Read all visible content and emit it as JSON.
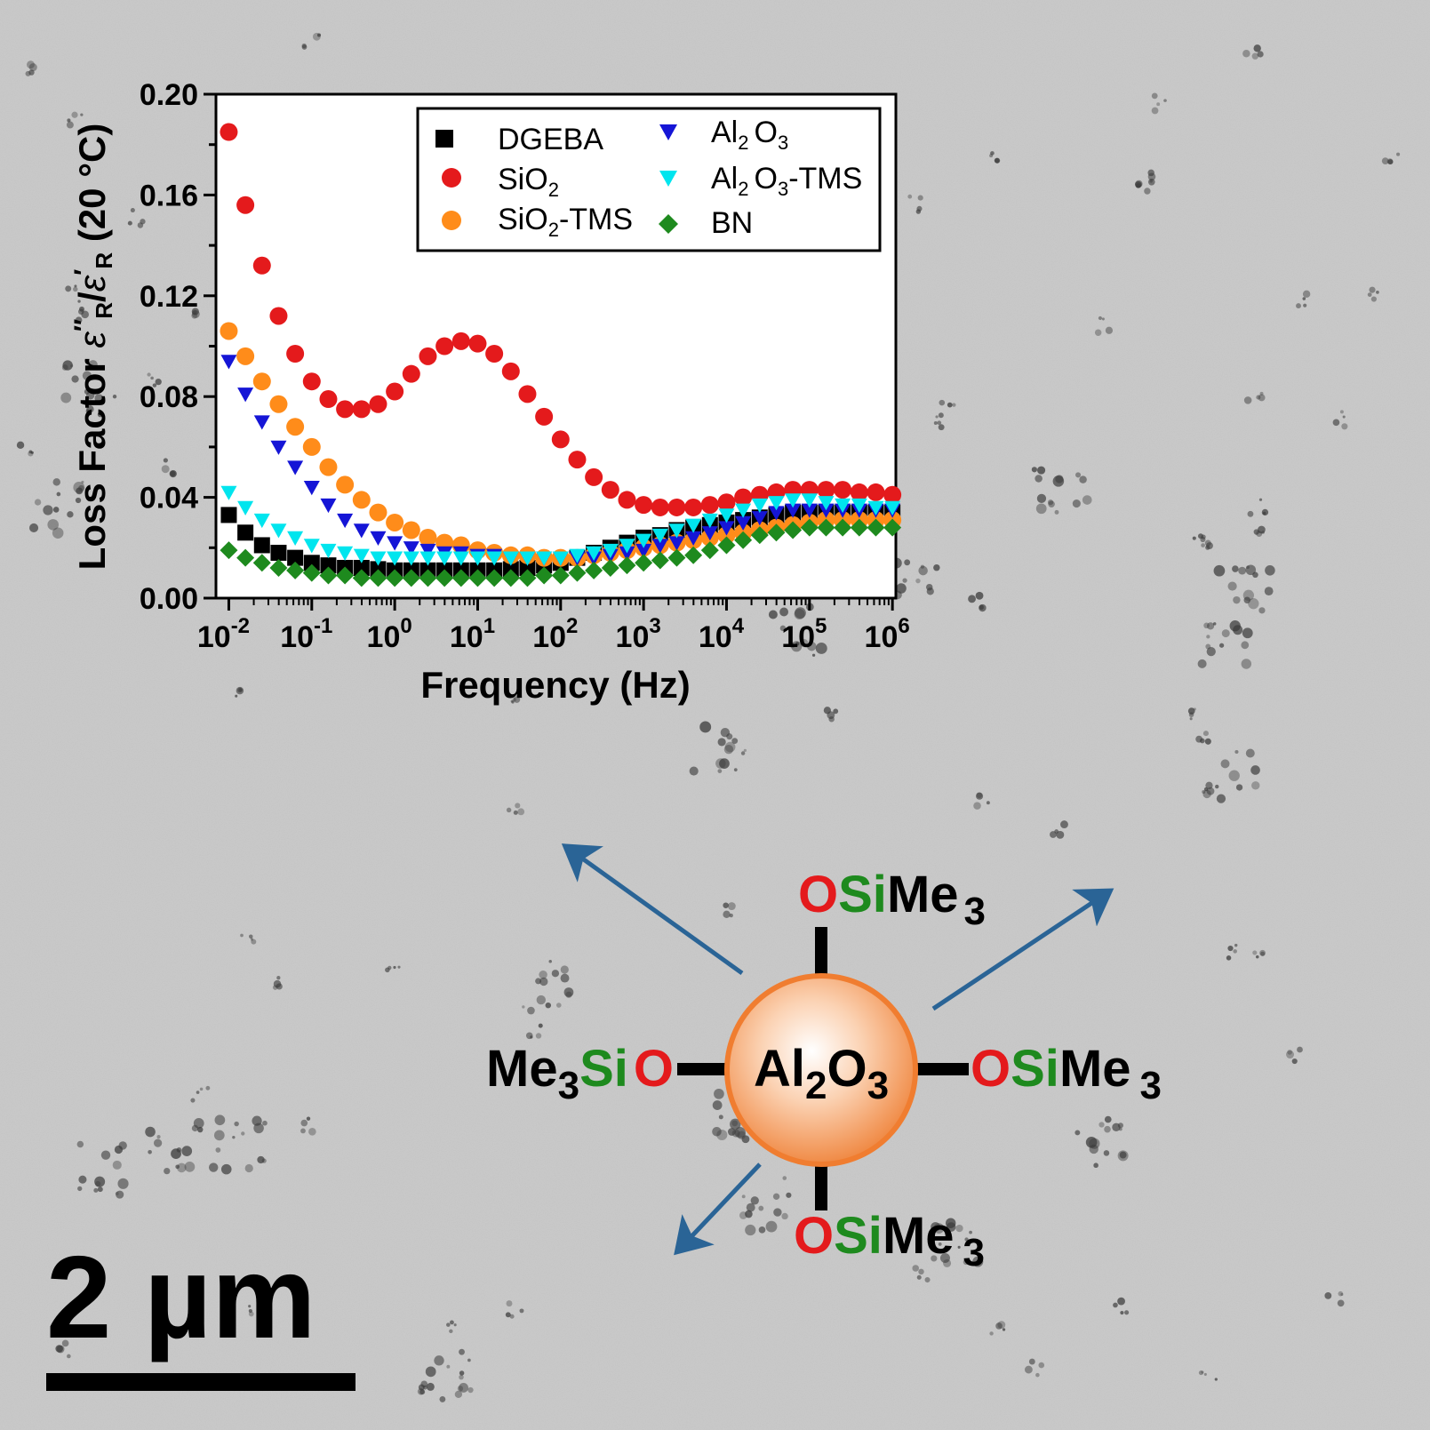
{
  "micrograph": {
    "background": "#c9c9c9",
    "scale_bar_label": "2 µm"
  },
  "chart_data": {
    "type": "scatter",
    "xlabel": "Frequency (Hz)",
    "ylabel": "Loss Factor ε″R/ε′R (20 °C)",
    "ylabel_parts": {
      "prefix": "Loss Factor ",
      "eps1": "ε",
      "dprime": "″",
      "sub1": "R",
      "slash": "/",
      "eps2": "ε",
      "prime": "′",
      "sub2": "R",
      "suffix": " (20 °C)"
    },
    "xscale": "log",
    "xlim": [
      0.007,
      1100000
    ],
    "ylim": [
      0,
      0.2
    ],
    "y_ticks": [
      "0.00",
      "0.04",
      "0.08",
      "0.12",
      "0.16",
      "0.20"
    ],
    "x_ticks": [
      {
        "base": "10",
        "exp": "-2"
      },
      {
        "base": "10",
        "exp": "-1"
      },
      {
        "base": "10",
        "exp": "0"
      },
      {
        "base": "10",
        "exp": "1"
      },
      {
        "base": "10",
        "exp": "2"
      },
      {
        "base": "10",
        "exp": "3"
      },
      {
        "base": "10",
        "exp": "4"
      },
      {
        "base": "10",
        "exp": "5"
      },
      {
        "base": "10",
        "exp": "6"
      }
    ],
    "grid": false,
    "legend_position": "top-right",
    "series": [
      {
        "name": "DGEBA",
        "legend": {
          "main": "DGEBA",
          "sub": "",
          "rest": ""
        },
        "marker": "square",
        "color": "#000000",
        "x_log10": [
          -2,
          -1.8,
          -1.6,
          -1.4,
          -1.2,
          -1,
          -0.8,
          -0.6,
          -0.4,
          -0.2,
          0,
          0.2,
          0.4,
          0.6,
          0.8,
          1,
          1.2,
          1.4,
          1.6,
          1.8,
          2,
          2.2,
          2.4,
          2.6,
          2.8,
          3,
          3.2,
          3.4,
          3.6,
          3.8,
          4,
          4.2,
          4.4,
          4.6,
          4.8,
          5,
          5.2,
          5.4,
          5.6,
          5.8,
          6
        ],
        "y": [
          0.033,
          0.026,
          0.021,
          0.018,
          0.016,
          0.014,
          0.013,
          0.012,
          0.012,
          0.0115,
          0.011,
          0.011,
          0.011,
          0.011,
          0.011,
          0.011,
          0.011,
          0.0115,
          0.012,
          0.013,
          0.014,
          0.016,
          0.018,
          0.02,
          0.022,
          0.024,
          0.025,
          0.027,
          0.028,
          0.029,
          0.03,
          0.031,
          0.032,
          0.033,
          0.034,
          0.034,
          0.034,
          0.034,
          0.034,
          0.034,
          0.034
        ]
      },
      {
        "name": "SiO2",
        "legend": {
          "main": "SiO",
          "sub": "2",
          "rest": ""
        },
        "marker": "circle",
        "color": "#e41a1c",
        "x_log10": [
          -2,
          -1.8,
          -1.6,
          -1.4,
          -1.2,
          -1,
          -0.8,
          -0.6,
          -0.4,
          -0.2,
          0,
          0.2,
          0.4,
          0.6,
          0.8,
          1,
          1.2,
          1.4,
          1.6,
          1.8,
          2,
          2.2,
          2.4,
          2.6,
          2.8,
          3,
          3.2,
          3.4,
          3.6,
          3.8,
          4,
          4.2,
          4.4,
          4.6,
          4.8,
          5,
          5.2,
          5.4,
          5.6,
          5.8,
          6
        ],
        "y": [
          0.185,
          0.156,
          0.132,
          0.112,
          0.097,
          0.086,
          0.079,
          0.075,
          0.075,
          0.077,
          0.082,
          0.089,
          0.096,
          0.1,
          0.102,
          0.101,
          0.097,
          0.09,
          0.081,
          0.072,
          0.063,
          0.055,
          0.048,
          0.043,
          0.039,
          0.037,
          0.036,
          0.036,
          0.036,
          0.037,
          0.038,
          0.04,
          0.041,
          0.042,
          0.043,
          0.043,
          0.043,
          0.043,
          0.042,
          0.042,
          0.041
        ]
      },
      {
        "name": "SiO2-TMS",
        "legend": {
          "main": "SiO",
          "sub": "2",
          "rest": "-TMS"
        },
        "marker": "circle",
        "color": "#ff8c1a",
        "x_log10": [
          -2,
          -1.8,
          -1.6,
          -1.4,
          -1.2,
          -1,
          -0.8,
          -0.6,
          -0.4,
          -0.2,
          0,
          0.2,
          0.4,
          0.6,
          0.8,
          1,
          1.2,
          1.4,
          1.6,
          1.8,
          2,
          2.2,
          2.4,
          2.6,
          2.8,
          3,
          3.2,
          3.4,
          3.6,
          3.8,
          4,
          4.2,
          4.4,
          4.6,
          4.8,
          5,
          5.2,
          5.4,
          5.6,
          5.8,
          6
        ],
        "y": [
          0.106,
          0.096,
          0.086,
          0.077,
          0.068,
          0.06,
          0.052,
          0.045,
          0.039,
          0.034,
          0.03,
          0.027,
          0.024,
          0.022,
          0.021,
          0.019,
          0.018,
          0.017,
          0.017,
          0.016,
          0.016,
          0.016,
          0.017,
          0.018,
          0.019,
          0.02,
          0.021,
          0.022,
          0.023,
          0.024,
          0.025,
          0.026,
          0.027,
          0.028,
          0.029,
          0.03,
          0.031,
          0.031,
          0.031,
          0.031,
          0.031
        ]
      },
      {
        "name": "Al2O3",
        "legend": {
          "main": "Al",
          "sub": "2",
          "rest": "O",
          "sub2": "3",
          "rest2": ""
        },
        "marker": "triangle-down",
        "color": "#1515d6",
        "x_log10": [
          -2,
          -1.8,
          -1.6,
          -1.4,
          -1.2,
          -1,
          -0.8,
          -0.6,
          -0.4,
          -0.2,
          0,
          0.2,
          0.4,
          0.6,
          0.8,
          1,
          1.2,
          1.4,
          1.6,
          1.8,
          2,
          2.2,
          2.4,
          2.6,
          2.8,
          3,
          3.2,
          3.4,
          3.6,
          3.8,
          4,
          4.2,
          4.4,
          4.6,
          4.8,
          5,
          5.2,
          5.4,
          5.6,
          5.8,
          6
        ],
        "y": [
          0.094,
          0.081,
          0.07,
          0.06,
          0.052,
          0.044,
          0.037,
          0.031,
          0.027,
          0.024,
          0.022,
          0.02,
          0.019,
          0.018,
          0.018,
          0.017,
          0.017,
          0.016,
          0.016,
          0.016,
          0.016,
          0.016,
          0.016,
          0.017,
          0.018,
          0.019,
          0.021,
          0.022,
          0.024,
          0.026,
          0.028,
          0.03,
          0.032,
          0.034,
          0.035,
          0.035,
          0.035,
          0.035,
          0.035,
          0.035,
          0.035
        ]
      },
      {
        "name": "Al2O3-TMS",
        "legend": {
          "main": "Al",
          "sub": "2",
          "rest": "O",
          "sub2": "3",
          "rest2": "-TMS"
        },
        "marker": "triangle-down",
        "color": "#00e5ee",
        "x_log10": [
          -2,
          -1.8,
          -1.6,
          -1.4,
          -1.2,
          -1,
          -0.8,
          -0.6,
          -0.4,
          -0.2,
          0,
          0.2,
          0.4,
          0.6,
          0.8,
          1,
          1.2,
          1.4,
          1.6,
          1.8,
          2,
          2.2,
          2.4,
          2.6,
          2.8,
          3,
          3.2,
          3.4,
          3.6,
          3.8,
          4,
          4.2,
          4.4,
          4.6,
          4.8,
          5,
          5.2,
          5.4,
          5.6,
          5.8,
          6
        ],
        "y": [
          0.042,
          0.036,
          0.031,
          0.027,
          0.024,
          0.021,
          0.019,
          0.018,
          0.017,
          0.016,
          0.016,
          0.016,
          0.016,
          0.016,
          0.016,
          0.016,
          0.016,
          0.016,
          0.016,
          0.016,
          0.016,
          0.017,
          0.018,
          0.019,
          0.021,
          0.023,
          0.025,
          0.027,
          0.029,
          0.031,
          0.033,
          0.035,
          0.037,
          0.038,
          0.039,
          0.039,
          0.038,
          0.037,
          0.037,
          0.036,
          0.036
        ]
      },
      {
        "name": "BN",
        "legend": {
          "main": "BN",
          "sub": "",
          "rest": ""
        },
        "marker": "diamond",
        "color": "#1e8a1e",
        "x_log10": [
          -2,
          -1.8,
          -1.6,
          -1.4,
          -1.2,
          -1,
          -0.8,
          -0.6,
          -0.4,
          -0.2,
          0,
          0.2,
          0.4,
          0.6,
          0.8,
          1,
          1.2,
          1.4,
          1.6,
          1.8,
          2,
          2.2,
          2.4,
          2.6,
          2.8,
          3,
          3.2,
          3.4,
          3.6,
          3.8,
          4,
          4.2,
          4.4,
          4.6,
          4.8,
          5,
          5.2,
          5.4,
          5.6,
          5.8,
          6
        ],
        "y": [
          0.019,
          0.016,
          0.014,
          0.012,
          0.011,
          0.01,
          0.009,
          0.009,
          0.008,
          0.008,
          0.008,
          0.008,
          0.008,
          0.008,
          0.008,
          0.008,
          0.008,
          0.008,
          0.008,
          0.009,
          0.009,
          0.01,
          0.011,
          0.012,
          0.013,
          0.014,
          0.015,
          0.016,
          0.017,
          0.019,
          0.021,
          0.023,
          0.025,
          0.026,
          0.027,
          0.028,
          0.028,
          0.028,
          0.028,
          0.028,
          0.028
        ]
      }
    ]
  },
  "molecule": {
    "core": {
      "main": "Al",
      "sub": "2",
      "rest": "O",
      "sub2": "3"
    },
    "core_color": "#f59a5a",
    "o_color": "#e41a1c",
    "si_color": "#1e8a1e",
    "me_color": "#000000",
    "arrow_color": "#2a6496",
    "groups": {
      "top": {
        "o": "O",
        "si": "Si",
        "me": "Me",
        "sub": "3"
      },
      "right": {
        "o": "O",
        "si": "Si",
        "me": "Me",
        "sub": "3"
      },
      "bottom": {
        "o": "O",
        "si": "Si",
        "me": "Me",
        "sub": "3"
      },
      "left": {
        "me": "Me",
        "sub": "3",
        "si": "Si",
        "o": "O"
      }
    }
  }
}
